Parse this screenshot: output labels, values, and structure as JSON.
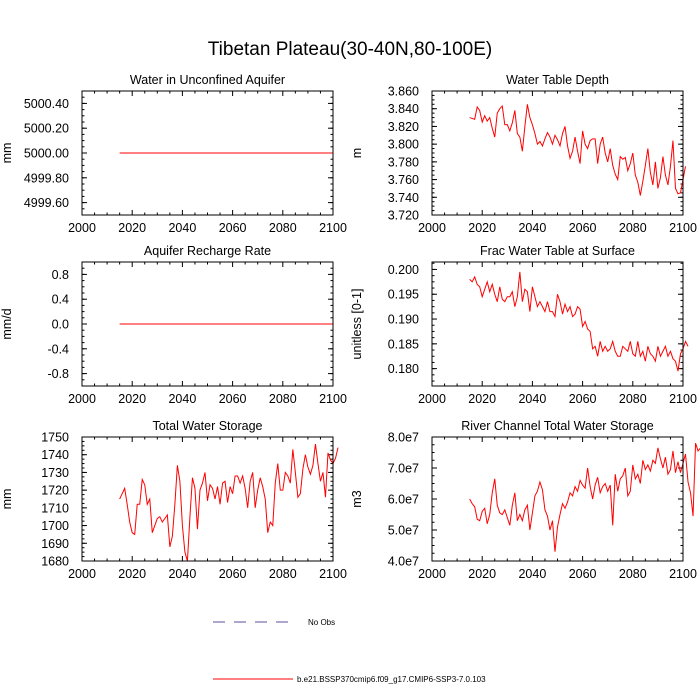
{
  "figure_title": "Tibetan Plateau(30-40N,80-100E)",
  "legend": [
    {
      "label": "No Obs",
      "style": "dashed",
      "color": "#5b4fa0"
    },
    {
      "label": "b.e21.BSSP370cmip6.f09_g17.CMIP6-SSP3-7.0.103",
      "style": "solid",
      "color": "#ff0000"
    }
  ],
  "chart_data": [
    {
      "type": "line",
      "title": "Water in Unconfined Aquifer",
      "ylabel": "mm",
      "xlabel": "",
      "xlim": [
        2000,
        2100
      ],
      "ylim": [
        4999.5,
        5000.5
      ],
      "xticks": [
        2000,
        2020,
        2040,
        2060,
        2080,
        2100
      ],
      "yticks": [
        4999.6,
        4999.8,
        5000.0,
        5000.2,
        5000.4
      ],
      "ytick_labels": [
        "4999.60",
        "4999.80",
        "5000.00",
        "5000.20",
        "5000.40"
      ],
      "series": [
        {
          "name": "b.e21.BSSP370cmip6.f09_g17.CMIP6-SSP3-7.0.103",
          "color": "#ff0000",
          "x_start": 2015,
          "values": [
            5000,
            5000,
            5000,
            5000,
            5000,
            5000,
            5000,
            5000,
            5000,
            5000,
            5000,
            5000,
            5000,
            5000,
            5000,
            5000,
            5000,
            5000,
            5000,
            5000,
            5000,
            5000,
            5000,
            5000,
            5000,
            5000,
            5000,
            5000,
            5000,
            5000,
            5000,
            5000,
            5000,
            5000,
            5000,
            5000,
            5000,
            5000,
            5000,
            5000,
            5000,
            5000,
            5000,
            5000,
            5000,
            5000,
            5000,
            5000,
            5000,
            5000,
            5000,
            5000,
            5000,
            5000,
            5000,
            5000,
            5000,
            5000,
            5000,
            5000,
            5000,
            5000,
            5000,
            5000,
            5000,
            5000,
            5000,
            5000,
            5000,
            5000,
            5000,
            5000,
            5000,
            5000,
            5000,
            5000,
            5000,
            5000,
            5000,
            5000,
            5000,
            5000,
            5000,
            5000,
            5000,
            5000
          ]
        }
      ]
    },
    {
      "type": "line",
      "title": "Water Table Depth",
      "ylabel": "m",
      "xlabel": "",
      "xlim": [
        2000,
        2100
      ],
      "ylim": [
        3.72,
        3.86
      ],
      "xticks": [
        2000,
        2020,
        2040,
        2060,
        2080,
        2100
      ],
      "yticks": [
        3.72,
        3.74,
        3.76,
        3.78,
        3.8,
        3.82,
        3.84,
        3.86
      ],
      "ytick_labels": [
        "3.720",
        "3.740",
        "3.760",
        "3.780",
        "3.800",
        "3.820",
        "3.840",
        "3.860"
      ],
      "series": [
        {
          "name": "b.e21.BSSP370cmip6.f09_g17.CMIP6-SSP3-7.0.103",
          "color": "#ff0000",
          "x_start": 2015,
          "values": [
            3.83,
            3.829,
            3.828,
            3.842,
            3.838,
            3.825,
            3.832,
            3.826,
            3.83,
            3.818,
            3.808,
            3.835,
            3.84,
            3.843,
            3.822,
            3.822,
            3.815,
            3.824,
            3.838,
            3.812,
            3.808,
            3.792,
            3.82,
            3.845,
            3.83,
            3.822,
            3.812,
            3.8,
            3.803,
            3.798,
            3.806,
            3.813,
            3.808,
            3.8,
            3.81,
            3.805,
            3.798,
            3.812,
            3.82,
            3.798,
            3.784,
            3.792,
            3.808,
            3.792,
            3.778,
            3.815,
            3.8,
            3.795,
            3.804,
            3.806,
            3.806,
            3.778,
            3.8,
            3.808,
            3.79,
            3.78,
            3.795,
            3.776,
            3.766,
            3.76,
            3.786,
            3.783,
            3.785,
            3.77,
            3.778,
            3.79,
            3.765,
            3.757,
            3.742,
            3.758,
            3.776,
            3.795,
            3.768,
            3.754,
            3.78,
            3.75,
            3.762,
            3.786,
            3.765,
            3.754,
            3.775,
            3.804,
            3.75,
            3.744,
            3.745,
            3.76,
            3.775
          ]
        }
      ]
    },
    {
      "type": "line",
      "title": "Aquifer Recharge Rate",
      "ylabel": "mm/d",
      "xlabel": "",
      "xlim": [
        2000,
        2100
      ],
      "ylim": [
        -1.0,
        1.0
      ],
      "xticks": [
        2000,
        2020,
        2040,
        2060,
        2080,
        2100
      ],
      "yticks": [
        -0.8,
        -0.4,
        0.0,
        0.4,
        0.8
      ],
      "ytick_labels": [
        "-0.8",
        "-0.4",
        "0.0",
        "0.4",
        "0.8"
      ],
      "series": [
        {
          "name": "b.e21.BSSP370cmip6.f09_g17.CMIP6-SSP3-7.0.103",
          "color": "#ff0000",
          "x_start": 2015,
          "values": [
            0,
            0,
            0,
            0,
            0,
            0,
            0,
            0,
            0,
            0,
            0,
            0,
            0,
            0,
            0,
            0,
            0,
            0,
            0,
            0,
            0,
            0,
            0,
            0,
            0,
            0,
            0,
            0,
            0,
            0,
            0,
            0,
            0,
            0,
            0,
            0,
            0,
            0,
            0,
            0,
            0,
            0,
            0,
            0,
            0,
            0,
            0,
            0,
            0,
            0,
            0,
            0,
            0,
            0,
            0,
            0,
            0,
            0,
            0,
            0,
            0,
            0,
            0,
            0,
            0,
            0,
            0,
            0,
            0,
            0,
            0,
            0,
            0,
            0,
            0,
            0,
            0,
            0,
            0,
            0,
            0,
            0,
            0,
            0,
            0,
            0
          ]
        }
      ]
    },
    {
      "type": "line",
      "title": "Frac Water Table at Surface",
      "ylabel": "unitless [0-1]",
      "xlabel": "",
      "xlim": [
        2000,
        2100
      ],
      "ylim": [
        0.1765,
        0.2015
      ],
      "xticks": [
        2000,
        2020,
        2040,
        2060,
        2080,
        2100
      ],
      "yticks": [
        0.18,
        0.185,
        0.19,
        0.195,
        0.2
      ],
      "ytick_labels": [
        "0.180",
        "0.185",
        "0.190",
        "0.195",
        "0.200"
      ],
      "series": [
        {
          "name": "b.e21.BSSP370cmip6.f09_g17.CMIP6-SSP3-7.0.103",
          "color": "#ff0000",
          "x_start": 2015,
          "values": [
            0.198,
            0.1975,
            0.1985,
            0.197,
            0.1965,
            0.1945,
            0.196,
            0.1975,
            0.1955,
            0.197,
            0.195,
            0.1935,
            0.1965,
            0.194,
            0.1935,
            0.1945,
            0.1945,
            0.1955,
            0.1925,
            0.1945,
            0.1995,
            0.1935,
            0.196,
            0.1955,
            0.1915,
            0.1965,
            0.1945,
            0.1925,
            0.1935,
            0.1925,
            0.1915,
            0.1935,
            0.1915,
            0.1915,
            0.1905,
            0.195,
            0.1935,
            0.191,
            0.193,
            0.1915,
            0.1925,
            0.1905,
            0.191,
            0.1925,
            0.192,
            0.1885,
            0.1895,
            0.188,
            0.1875,
            0.184,
            0.1845,
            0.1825,
            0.1855,
            0.1835,
            0.1845,
            0.1835,
            0.184,
            0.1855,
            0.1835,
            0.1825,
            0.1825,
            0.1845,
            0.184,
            0.1835,
            0.1855,
            0.183,
            0.1825,
            0.1855,
            0.1825,
            0.1835,
            0.1815,
            0.1845,
            0.183,
            0.1825,
            0.1815,
            0.1845,
            0.1825,
            0.1835,
            0.1845,
            0.1825,
            0.1835,
            0.182,
            0.1815,
            0.1795,
            0.183,
            0.184,
            0.1855,
            0.1845
          ]
        }
      ]
    },
    {
      "type": "line",
      "title": "Total Water Storage",
      "ylabel": "mm",
      "xlabel": "",
      "xlim": [
        2000,
        2100
      ],
      "ylim": [
        1680,
        1750
      ],
      "xticks": [
        2000,
        2020,
        2040,
        2060,
        2080,
        2100
      ],
      "yticks": [
        1680,
        1690,
        1700,
        1710,
        1720,
        1730,
        1740,
        1750
      ],
      "ytick_labels": [
        "1680",
        "1690",
        "1700",
        "1710",
        "1720",
        "1730",
        "1740",
        "1750"
      ],
      "series": [
        {
          "name": "b.e21.BSSP370cmip6.f09_g17.CMIP6-SSP3-7.0.103",
          "color": "#ff0000",
          "x_start": 2015,
          "values": [
            1715,
            1718,
            1721,
            1712,
            1702,
            1696,
            1695,
            1712,
            1712,
            1726,
            1723,
            1712,
            1715,
            1696,
            1700,
            1704,
            1705,
            1702,
            1704,
            1706,
            1688,
            1694,
            1712,
            1734,
            1725,
            1700,
            1685,
            1680,
            1705,
            1727,
            1721,
            1698,
            1720,
            1724,
            1730,
            1714,
            1723,
            1721,
            1715,
            1722,
            1712,
            1724,
            1725,
            1713,
            1722,
            1718,
            1728,
            1728,
            1724,
            1728,
            1721,
            1710,
            1725,
            1730,
            1710,
            1720,
            1727,
            1722,
            1715,
            1696,
            1702,
            1700,
            1724,
            1735,
            1720,
            1720,
            1730,
            1728,
            1724,
            1743,
            1730,
            1716,
            1718,
            1732,
            1740,
            1733,
            1729,
            1734,
            1746,
            1735,
            1725,
            1730,
            1716,
            1741,
            1737,
            1735,
            1738,
            1744
          ]
        }
      ]
    },
    {
      "type": "line",
      "title": "River Channel Total Water Storage",
      "ylabel": "m3",
      "xlabel": "",
      "xlim": [
        2000,
        2100
      ],
      "ylim": [
        40000000,
        80000000
      ],
      "xticks": [
        2000,
        2020,
        2040,
        2060,
        2080,
        2100
      ],
      "yticks": [
        40000000,
        50000000,
        60000000,
        70000000,
        80000000
      ],
      "ytick_labels": [
        "4.0e7",
        "5.0e7",
        "6.0e7",
        "7.0e7",
        "8.0e7"
      ],
      "series": [
        {
          "name": "b.e21.BSSP370cmip6.f09_g17.CMIP6-SSP3-7.0.103",
          "color": "#ff0000",
          "x_start": 2015,
          "values": [
            60000000,
            58500000,
            57500000,
            53500000,
            53000000,
            56000000,
            57000000,
            52000000,
            55000000,
            62000000,
            66500000,
            58000000,
            55500000,
            55000000,
            56500000,
            54000000,
            51500000,
            58000000,
            62000000,
            53000000,
            55000000,
            53000000,
            56500000,
            58000000,
            50000000,
            55500000,
            61000000,
            62500000,
            65500000,
            63000000,
            56500000,
            54500000,
            50000000,
            53000000,
            43000000,
            51000000,
            55000000,
            58500000,
            57000000,
            59000000,
            62000000,
            61000000,
            64000000,
            62500000,
            66000000,
            64500000,
            63500000,
            70000000,
            64000000,
            60000000,
            64500000,
            67000000,
            62000000,
            64000000,
            65000000,
            62500000,
            64500000,
            51500000,
            68000000,
            62500000,
            66500000,
            67500000,
            70000000,
            61000000,
            62500000,
            71000000,
            66500000,
            68000000,
            65000000,
            72500000,
            69500000,
            71000000,
            69000000,
            72500000,
            71500000,
            76500000,
            73000000,
            70000000,
            73500000,
            68000000,
            69500000,
            75500000,
            68500000,
            72000000,
            68500000,
            71500000,
            74500000,
            65500000,
            62000000,
            54500000,
            78000000,
            75500000,
            76500000,
            69000000
          ]
        }
      ]
    }
  ]
}
